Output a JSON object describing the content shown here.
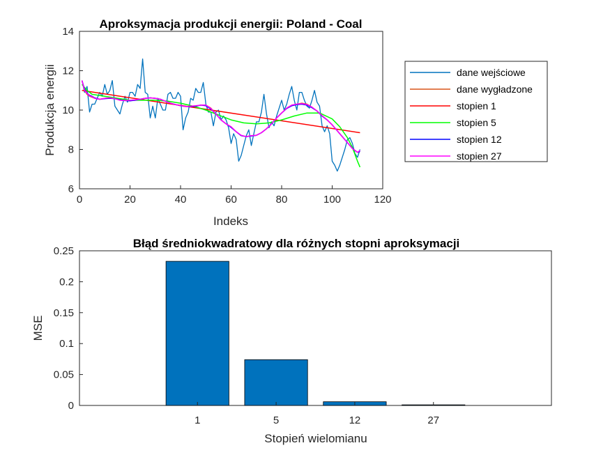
{
  "chart_data": [
    {
      "type": "line",
      "title": "Aproksymacja produkcji energii: Poland - Coal",
      "xlabel": "Indeks",
      "ylabel": "Produkcja energii",
      "xlim": [
        0,
        120
      ],
      "ylim": [
        6,
        14
      ],
      "xticks": [
        "0",
        "20",
        "40",
        "60",
        "80",
        "100",
        "120"
      ],
      "yticks": [
        "6",
        "8",
        "10",
        "12",
        "14"
      ],
      "legend_position": "outside-right",
      "series": [
        {
          "name": "dane wejściowe",
          "color": "#0072BD",
          "x": [
            1,
            2,
            3,
            4,
            5,
            6,
            7,
            8,
            9,
            10,
            11,
            12,
            13,
            14,
            15,
            16,
            17,
            18,
            19,
            20,
            21,
            22,
            23,
            24,
            25,
            26,
            27,
            28,
            29,
            30,
            31,
            32,
            33,
            34,
            35,
            36,
            37,
            38,
            39,
            40,
            41,
            42,
            43,
            44,
            45,
            46,
            47,
            48,
            49,
            50,
            51,
            52,
            53,
            54,
            55,
            56,
            57,
            58,
            59,
            60,
            61,
            62,
            63,
            64,
            65,
            66,
            67,
            68,
            69,
            70,
            71,
            72,
            73,
            74,
            75,
            76,
            77,
            78,
            79,
            80,
            81,
            82,
            83,
            84,
            85,
            86,
            87,
            88,
            89,
            90,
            91,
            92,
            93,
            94,
            95,
            96,
            97,
            98,
            99,
            100,
            101,
            102,
            103,
            104,
            105,
            106,
            107,
            108,
            109,
            110,
            111
          ],
          "y": [
            11.5,
            10.9,
            11.2,
            9.9,
            10.3,
            10.3,
            10.6,
            10.9,
            10.7,
            11.3,
            10.8,
            11.0,
            11.5,
            10.2,
            10.0,
            9.8,
            10.3,
            10.7,
            10.4,
            10.9,
            10.9,
            10.7,
            11.3,
            11.1,
            12.6,
            10.9,
            10.8,
            9.6,
            10.2,
            9.6,
            10.6,
            10.3,
            10.0,
            10.0,
            10.8,
            10.9,
            10.6,
            10.6,
            10.9,
            10.7,
            9.0,
            9.6,
            9.9,
            10.6,
            10.5,
            11.1,
            10.9,
            10.9,
            11.4,
            10.3,
            9.9,
            9.9,
            9.2,
            9.9,
            10.0,
            9.5,
            9.7,
            9.5,
            9.1,
            8.3,
            8.8,
            8.5,
            7.4,
            7.7,
            8.2,
            8.7,
            9.0,
            8.2,
            8.8,
            9.4,
            9.4,
            9.9,
            10.8,
            9.8,
            9.1,
            9.4,
            9.2,
            9.7,
            10.1,
            10.5,
            10.0,
            10.3,
            10.8,
            11.2,
            10.5,
            10.0,
            10.9,
            10.9,
            10.5,
            10.2,
            10.1,
            10.5,
            11.0,
            10.4,
            10.2,
            9.2,
            8.9,
            9.2,
            8.8,
            7.4,
            7.2,
            6.9,
            7.2,
            7.6,
            8.0,
            8.5,
            8.6,
            8.3,
            7.8,
            7.6,
            8.0
          ]
        },
        {
          "name": "dane wygładzone",
          "color": "#D95319",
          "x": [
            1,
            2,
            3,
            4,
            5,
            6,
            8,
            10,
            12,
            14,
            16,
            18,
            20,
            22,
            24,
            26,
            28,
            30,
            32,
            34,
            36,
            38,
            40,
            42,
            44,
            46,
            48,
            50,
            52,
            54,
            56,
            58,
            60,
            62,
            64,
            66,
            68,
            70,
            72,
            74,
            76,
            78,
            80,
            82,
            84,
            86,
            88,
            90,
            92,
            94,
            96,
            98,
            100,
            102,
            104,
            106,
            108,
            110,
            111
          ],
          "y": [
            11.5,
            11.0,
            10.8,
            10.7,
            10.65,
            10.6,
            10.55,
            10.6,
            10.62,
            10.58,
            10.52,
            10.5,
            10.5,
            10.5,
            10.55,
            10.6,
            10.62,
            10.6,
            10.55,
            10.45,
            10.35,
            10.28,
            10.22,
            10.18,
            10.18,
            10.2,
            10.25,
            10.25,
            10.1,
            9.8,
            9.5,
            9.3,
            9.15,
            8.9,
            8.7,
            8.65,
            8.7,
            8.72,
            8.85,
            9.05,
            9.3,
            9.6,
            9.85,
            10.1,
            10.25,
            10.3,
            10.35,
            10.3,
            10.15,
            9.95,
            9.7,
            9.5,
            9.25,
            8.95,
            8.65,
            8.35,
            8.05,
            7.85,
            7.9
          ]
        },
        {
          "name": "stopien 1",
          "color": "#FF0000",
          "x": [
            1,
            111
          ],
          "y": [
            11.0,
            8.85
          ]
        },
        {
          "name": "stopien 5",
          "color": "#00FF00",
          "x": [
            1,
            3,
            5,
            10,
            15,
            20,
            25,
            30,
            35,
            40,
            45,
            50,
            55,
            60,
            65,
            70,
            75,
            80,
            85,
            90,
            95,
            100,
            103,
            106,
            108,
            110,
            111
          ],
          "y": [
            11.3,
            11.0,
            10.8,
            10.7,
            10.6,
            10.5,
            10.5,
            10.5,
            10.45,
            10.35,
            10.2,
            10.0,
            9.75,
            9.5,
            9.35,
            9.3,
            9.35,
            9.5,
            9.7,
            9.85,
            9.85,
            9.55,
            9.15,
            8.6,
            8.1,
            7.4,
            7.1
          ]
        },
        {
          "name": "stopien 12",
          "color": "#0000FF",
          "x": [
            1,
            2,
            3,
            4,
            5,
            6,
            8,
            10,
            12,
            14,
            16,
            18,
            20,
            22,
            24,
            26,
            28,
            30,
            32,
            34,
            36,
            38,
            40,
            42,
            44,
            46,
            48,
            50,
            52,
            54,
            56,
            58,
            60,
            62,
            64,
            66,
            68,
            70,
            72,
            74,
            76,
            78,
            80,
            82,
            84,
            86,
            88,
            90,
            92,
            94,
            96,
            98,
            100,
            102,
            104,
            106,
            108,
            110,
            111
          ],
          "y": [
            11.5,
            11.05,
            10.85,
            10.75,
            10.7,
            10.62,
            10.55,
            10.58,
            10.6,
            10.58,
            10.52,
            10.48,
            10.47,
            10.5,
            10.55,
            10.6,
            10.62,
            10.6,
            10.55,
            10.45,
            10.35,
            10.28,
            10.22,
            10.18,
            10.18,
            10.2,
            10.25,
            10.22,
            10.05,
            9.8,
            9.5,
            9.3,
            9.12,
            8.9,
            8.7,
            8.65,
            8.68,
            8.72,
            8.85,
            9.05,
            9.3,
            9.6,
            9.85,
            10.08,
            10.22,
            10.28,
            10.3,
            10.25,
            10.12,
            9.95,
            9.7,
            9.5,
            9.25,
            8.95,
            8.65,
            8.35,
            8.05,
            7.85,
            7.9
          ]
        },
        {
          "name": "stopien 27",
          "color": "#FF00FF",
          "x": [
            1,
            2,
            3,
            4,
            5,
            6,
            8,
            10,
            12,
            14,
            16,
            18,
            20,
            22,
            24,
            26,
            28,
            30,
            32,
            34,
            36,
            38,
            40,
            42,
            44,
            46,
            48,
            50,
            52,
            54,
            56,
            58,
            60,
            62,
            64,
            66,
            68,
            70,
            72,
            74,
            76,
            78,
            80,
            82,
            84,
            86,
            88,
            90,
            92,
            94,
            96,
            98,
            100,
            102,
            104,
            106,
            108,
            110,
            111
          ],
          "y": [
            11.5,
            11.0,
            10.85,
            10.72,
            10.68,
            10.6,
            10.55,
            10.6,
            10.62,
            10.58,
            10.5,
            10.48,
            10.5,
            10.52,
            10.55,
            10.6,
            10.62,
            10.6,
            10.55,
            10.45,
            10.35,
            10.28,
            10.22,
            10.18,
            10.2,
            10.22,
            10.25,
            10.25,
            10.08,
            9.8,
            9.5,
            9.3,
            9.15,
            8.9,
            8.72,
            8.65,
            8.7,
            8.72,
            8.85,
            9.05,
            9.3,
            9.6,
            9.85,
            10.1,
            10.25,
            10.3,
            10.33,
            10.28,
            10.15,
            9.95,
            9.72,
            9.5,
            9.25,
            8.95,
            8.65,
            8.35,
            8.05,
            7.85,
            7.95
          ]
        }
      ]
    },
    {
      "type": "bar",
      "title": "Błąd średniokwadratowy dla różnych stopni aproksymacji",
      "xlabel": "Stopień wielomianu",
      "ylabel": "MSE",
      "categories": [
        "1",
        "5",
        "12",
        "27"
      ],
      "values": [
        0.233,
        0.074,
        0.006,
        0.001
      ],
      "ylim": [
        0,
        0.25
      ],
      "yticks": [
        "0",
        "0.05",
        "0.1",
        "0.15",
        "0.2",
        "0.25"
      ],
      "bar_color": "#0072BD"
    }
  ]
}
